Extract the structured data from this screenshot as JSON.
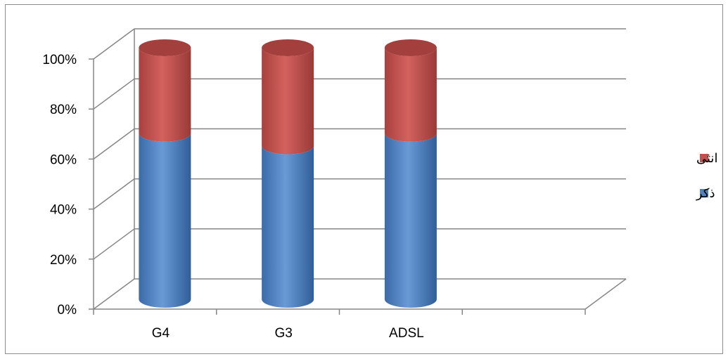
{
  "chart_data": {
    "type": "bar",
    "stacked": true,
    "percent_stacked": true,
    "style": "3d-cylinder",
    "title": "",
    "xlabel": "",
    "ylabel": "",
    "categories": [
      "G4",
      "G3",
      "ADSL"
    ],
    "series": [
      {
        "name": "ذكر",
        "color": "#4f81bd",
        "values": [
          0.66,
          0.61,
          0.66
        ]
      },
      {
        "name": "انثى",
        "color": "#c0504d",
        "values": [
          0.34,
          0.39,
          0.34
        ]
      }
    ],
    "ylim": [
      0,
      1
    ],
    "yticks": [
      "0%",
      "20%",
      "40%",
      "60%",
      "80%",
      "100%"
    ],
    "grid": true,
    "legend_position": "right"
  }
}
